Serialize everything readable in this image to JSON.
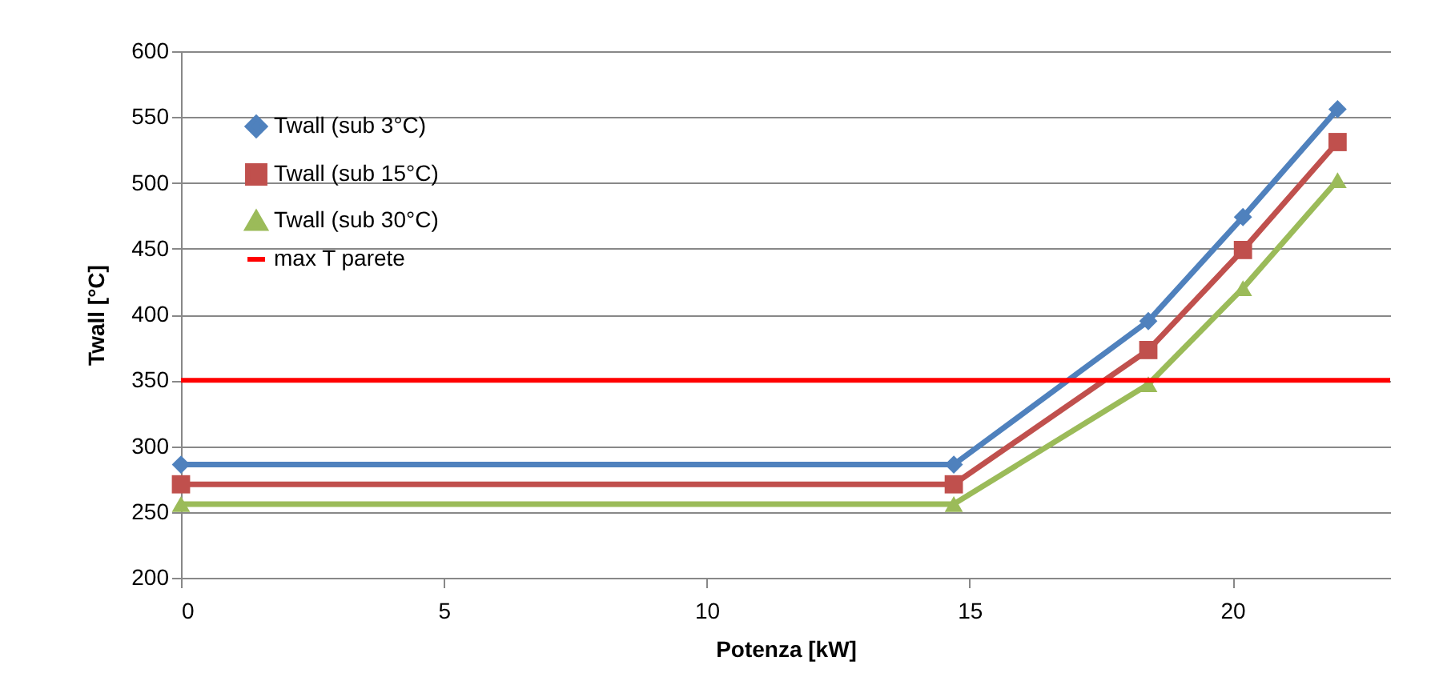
{
  "chart_data": {
    "type": "line",
    "xlabel": "Potenza [kW]",
    "ylabel": "Twall [°C]",
    "x": [
      0,
      14.7,
      18.4,
      20.2,
      22
    ],
    "series": [
      {
        "name": "Twall (sub 3°C)",
        "color": "#4f81bd",
        "marker": "diamond",
        "values": [
          286,
          286,
          395,
          474,
          556
        ]
      },
      {
        "name": "Twall (sub 15°C)",
        "color": "#c0504d",
        "marker": "square",
        "values": [
          271,
          271,
          373,
          449,
          531
        ]
      },
      {
        "name": "Twall (sub 30°C)",
        "color": "#9bbb59",
        "marker": "triangle",
        "values": [
          256,
          256,
          347,
          420,
          502
        ]
      }
    ],
    "ref_lines": [
      {
        "axis": "y",
        "value": 350,
        "label": "max T parete",
        "color": "#ff0000"
      }
    ],
    "xlim": [
      0,
      23
    ],
    "xticks": [
      0,
      5,
      10,
      15,
      20
    ],
    "ylim": [
      200,
      600
    ],
    "yticks": [
      200,
      250,
      300,
      350,
      400,
      450,
      500,
      550,
      600
    ],
    "grid": "y",
    "legend": "top left",
    "line_style": "solid"
  }
}
